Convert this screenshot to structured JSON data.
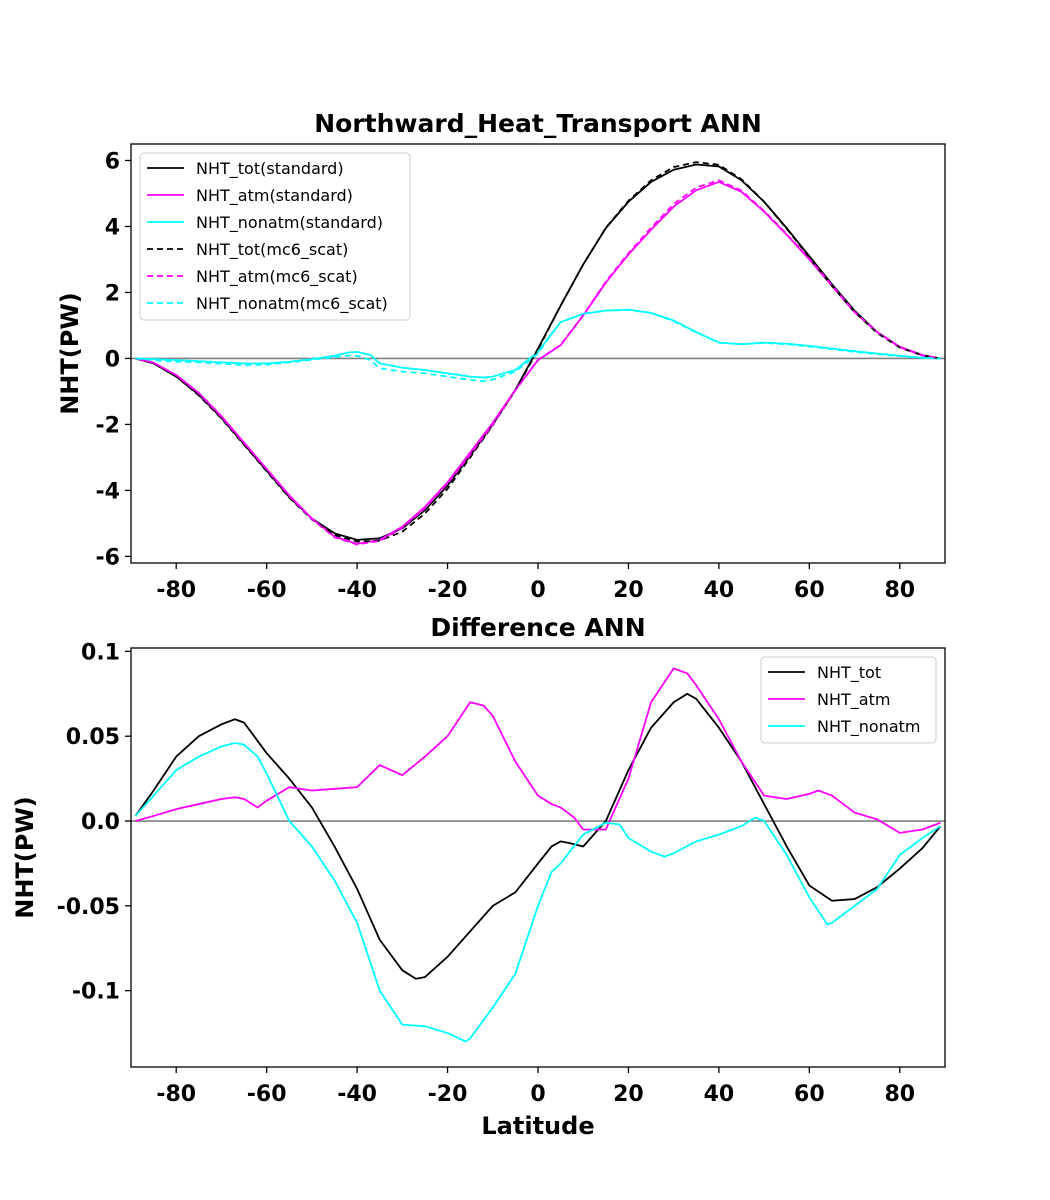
{
  "chart_data": [
    {
      "type": "line",
      "title": "Northward_Heat_Transport ANN",
      "xlabel": "",
      "ylabel": "NHT(PW)",
      "xlim": [
        -90,
        90
      ],
      "ylim": [
        -6.2,
        6.5
      ],
      "xticks": [
        -80,
        -60,
        -40,
        -20,
        0,
        20,
        40,
        60,
        80
      ],
      "xtick_labels": [
        "-80",
        "-60",
        "-40",
        "-20",
        "0",
        "20",
        "40",
        "60",
        "80"
      ],
      "yticks": [
        -6,
        -4,
        -2,
        0,
        2,
        4,
        6
      ],
      "ytick_labels": [
        "-6",
        "-4",
        "-2",
        "0",
        "2",
        "4",
        "6"
      ],
      "zero_line": true,
      "grid": false,
      "legend_position": "upper-left",
      "series": [
        {
          "name": "NHT_tot(standard)",
          "color": "#000000",
          "dash": "solid",
          "x": [
            -89,
            -85,
            -80,
            -75,
            -70,
            -65,
            -60,
            -55,
            -50,
            -45,
            -40,
            -35,
            -30,
            -25,
            -20,
            -15,
            -10,
            -5,
            0,
            5,
            10,
            15,
            20,
            25,
            30,
            35,
            40,
            45,
            50,
            55,
            60,
            65,
            70,
            75,
            80,
            85,
            89
          ],
          "y": [
            0,
            -0.15,
            -0.55,
            -1.1,
            -1.8,
            -2.6,
            -3.4,
            -4.2,
            -4.85,
            -5.3,
            -5.5,
            -5.45,
            -5.15,
            -4.6,
            -3.85,
            -2.95,
            -2.0,
            -0.95,
            0.3,
            1.6,
            2.85,
            3.95,
            4.75,
            5.35,
            5.72,
            5.88,
            5.82,
            5.4,
            4.75,
            3.95,
            3.1,
            2.25,
            1.45,
            0.8,
            0.35,
            0.1,
            0
          ]
        },
        {
          "name": "NHT_atm(standard)",
          "color": "#ff00ff",
          "dash": "solid",
          "x": [
            -89,
            -85,
            -80,
            -75,
            -70,
            -65,
            -60,
            -55,
            -50,
            -45,
            -40,
            -35,
            -30,
            -25,
            -20,
            -15,
            -10,
            -5,
            0,
            5,
            10,
            15,
            20,
            25,
            30,
            35,
            40,
            45,
            50,
            55,
            60,
            65,
            70,
            75,
            80,
            85,
            89
          ],
          "y": [
            0,
            -0.13,
            -0.5,
            -1.05,
            -1.75,
            -2.55,
            -3.35,
            -4.15,
            -4.85,
            -5.4,
            -5.62,
            -5.5,
            -5.1,
            -4.5,
            -3.75,
            -2.85,
            -1.95,
            -0.95,
            -0.05,
            0.4,
            1.3,
            2.3,
            3.15,
            3.9,
            4.6,
            5.1,
            5.35,
            5.05,
            4.45,
            3.75,
            3.0,
            2.2,
            1.4,
            0.8,
            0.35,
            0.1,
            0
          ]
        },
        {
          "name": "NHT_nonatm(standard)",
          "color": "#00ffff",
          "dash": "solid",
          "x": [
            -89,
            -85,
            -80,
            -75,
            -70,
            -65,
            -60,
            -55,
            -50,
            -45,
            -42,
            -40,
            -37,
            -35,
            -30,
            -25,
            -20,
            -15,
            -12,
            -10,
            -5,
            0,
            3,
            5,
            10,
            15,
            20,
            25,
            30,
            35,
            40,
            45,
            50,
            55,
            60,
            65,
            70,
            75,
            80,
            85,
            89
          ],
          "y": [
            0,
            -0.02,
            -0.05,
            -0.08,
            -0.12,
            -0.15,
            -0.15,
            -0.1,
            -0.02,
            0.08,
            0.18,
            0.2,
            0.1,
            -0.15,
            -0.28,
            -0.35,
            -0.45,
            -0.55,
            -0.58,
            -0.55,
            -0.35,
            0.2,
            0.75,
            1.1,
            1.35,
            1.45,
            1.48,
            1.38,
            1.15,
            0.8,
            0.48,
            0.43,
            0.48,
            0.45,
            0.38,
            0.3,
            0.22,
            0.15,
            0.08,
            0.02,
            0
          ]
        },
        {
          "name": "NHT_tot(mc6_scat)",
          "color": "#000000",
          "dash": "dashed",
          "x": [
            -89,
            -85,
            -80,
            -75,
            -70,
            -65,
            -60,
            -55,
            -50,
            -45,
            -40,
            -35,
            -30,
            -25,
            -20,
            -15,
            -10,
            -5,
            0,
            5,
            10,
            15,
            20,
            25,
            30,
            35,
            40,
            45,
            50,
            55,
            60,
            65,
            70,
            75,
            80,
            85,
            89
          ],
          "y": [
            0,
            -0.15,
            -0.55,
            -1.12,
            -1.82,
            -2.62,
            -3.42,
            -4.22,
            -4.88,
            -5.35,
            -5.55,
            -5.52,
            -5.25,
            -4.7,
            -3.95,
            -3.0,
            -2.02,
            -0.97,
            0.27,
            1.6,
            2.85,
            3.96,
            4.78,
            5.4,
            5.8,
            5.95,
            5.87,
            5.43,
            4.75,
            3.93,
            3.06,
            2.2,
            1.41,
            0.77,
            0.33,
            0.09,
            0
          ]
        },
        {
          "name": "NHT_atm(mc6_scat)",
          "color": "#ff00ff",
          "dash": "dashed",
          "x": [
            -89,
            -85,
            -80,
            -75,
            -70,
            -65,
            -60,
            -55,
            -50,
            -45,
            -40,
            -35,
            -30,
            -25,
            -20,
            -15,
            -10,
            -5,
            0,
            5,
            10,
            15,
            20,
            25,
            30,
            35,
            40,
            45,
            50,
            55,
            60,
            65,
            70,
            75,
            80,
            85,
            89
          ],
          "y": [
            0,
            -0.13,
            -0.51,
            -1.06,
            -1.77,
            -2.57,
            -3.36,
            -4.17,
            -4.87,
            -5.42,
            -5.64,
            -5.53,
            -5.13,
            -4.54,
            -3.79,
            -2.92,
            -2.0,
            -0.97,
            -0.04,
            0.41,
            1.31,
            2.33,
            3.19,
            3.96,
            4.68,
            5.18,
            5.4,
            5.09,
            4.47,
            3.77,
            3.02,
            2.22,
            1.41,
            0.8,
            0.34,
            0.09,
            0
          ]
        },
        {
          "name": "NHT_nonatm(mc6_scat)",
          "color": "#00ffff",
          "dash": "dashed",
          "x": [
            -89,
            -85,
            -80,
            -75,
            -70,
            -65,
            -60,
            -55,
            -50,
            -45,
            -42,
            -40,
            -37,
            -35,
            -30,
            -25,
            -20,
            -15,
            -12,
            -10,
            -5,
            0,
            3,
            5,
            10,
            15,
            20,
            25,
            30,
            35,
            40,
            45,
            50,
            55,
            60,
            65,
            70,
            75,
            80,
            85,
            89
          ],
          "y": [
            0,
            -0.05,
            -0.1,
            -0.12,
            -0.16,
            -0.2,
            -0.19,
            -0.12,
            -0.04,
            0.04,
            0.09,
            0.08,
            -0.05,
            -0.3,
            -0.4,
            -0.45,
            -0.55,
            -0.65,
            -0.69,
            -0.64,
            -0.4,
            0.15,
            0.74,
            1.1,
            1.36,
            1.45,
            1.47,
            1.38,
            1.13,
            0.79,
            0.48,
            0.43,
            0.47,
            0.43,
            0.36,
            0.28,
            0.2,
            0.13,
            0.07,
            0.02,
            0
          ]
        }
      ]
    },
    {
      "type": "line",
      "title": "Difference ANN",
      "xlabel": "Latitude",
      "ylabel": "NHT(PW)",
      "xlim": [
        -90,
        90
      ],
      "ylim": [
        -0.145,
        0.102
      ],
      "xticks": [
        -80,
        -60,
        -40,
        -20,
        0,
        20,
        40,
        60,
        80
      ],
      "xtick_labels": [
        "-80",
        "-60",
        "-40",
        "-20",
        "0",
        "20",
        "40",
        "60",
        "80"
      ],
      "yticks": [
        -0.1,
        -0.05,
        0.0,
        0.05,
        0.1
      ],
      "ytick_labels": [
        "-0.1",
        "-0.05",
        "0.0",
        "0.05",
        "0.1"
      ],
      "zero_line": true,
      "grid": false,
      "legend_position": "upper-right",
      "series": [
        {
          "name": "NHT_tot",
          "color": "#000000",
          "dash": "solid",
          "x": [
            -89,
            -85,
            -80,
            -75,
            -70,
            -67,
            -65,
            -60,
            -55,
            -50,
            -45,
            -40,
            -35,
            -30,
            -27,
            -25,
            -20,
            -15,
            -10,
            -5,
            0,
            3,
            5,
            7,
            10,
            15,
            20,
            25,
            30,
            33,
            35,
            40,
            45,
            50,
            55,
            60,
            65,
            70,
            75,
            80,
            85,
            89
          ],
          "y": [
            0.003,
            0.018,
            0.038,
            0.05,
            0.057,
            0.06,
            0.058,
            0.04,
            0.025,
            0.008,
            -0.015,
            -0.04,
            -0.07,
            -0.088,
            -0.093,
            -0.092,
            -0.08,
            -0.065,
            -0.05,
            -0.042,
            -0.025,
            -0.015,
            -0.012,
            -0.013,
            -0.015,
            0.0,
            0.03,
            0.055,
            0.07,
            0.075,
            0.072,
            0.055,
            0.035,
            0.01,
            -0.015,
            -0.038,
            -0.047,
            -0.046,
            -0.039,
            -0.028,
            -0.016,
            -0.003
          ]
        },
        {
          "name": "NHT_atm",
          "color": "#ff00ff",
          "dash": "solid",
          "x": [
            -89,
            -85,
            -80,
            -75,
            -70,
            -67,
            -65,
            -62,
            -60,
            -55,
            -50,
            -45,
            -40,
            -35,
            -30,
            -25,
            -20,
            -15,
            -12,
            -10,
            -5,
            0,
            3,
            5,
            8,
            10,
            15,
            20,
            25,
            30,
            33,
            35,
            40,
            45,
            50,
            55,
            60,
            62,
            65,
            70,
            75,
            80,
            85,
            89
          ],
          "y": [
            0.0,
            0.003,
            0.007,
            0.01,
            0.013,
            0.014,
            0.013,
            0.008,
            0.012,
            0.02,
            0.018,
            0.019,
            0.02,
            0.033,
            0.027,
            0.038,
            0.05,
            0.07,
            0.068,
            0.062,
            0.035,
            0.015,
            0.01,
            0.008,
            0.002,
            -0.005,
            -0.005,
            0.025,
            0.07,
            0.09,
            0.087,
            0.08,
            0.06,
            0.035,
            0.015,
            0.013,
            0.016,
            0.018,
            0.015,
            0.005,
            0.001,
            -0.007,
            -0.005,
            -0.001
          ]
        },
        {
          "name": "NHT_nonatm",
          "color": "#00ffff",
          "dash": "solid",
          "x": [
            -89,
            -85,
            -80,
            -75,
            -70,
            -67,
            -65,
            -62,
            -60,
            -55,
            -50,
            -45,
            -40,
            -35,
            -30,
            -25,
            -20,
            -16,
            -15,
            -10,
            -5,
            0,
            3,
            5,
            10,
            15,
            18,
            20,
            25,
            28,
            30,
            35,
            40,
            45,
            48,
            50,
            55,
            60,
            64,
            65,
            70,
            75,
            80,
            85,
            89
          ],
          "y": [
            0.003,
            0.015,
            0.03,
            0.038,
            0.044,
            0.046,
            0.045,
            0.038,
            0.028,
            0.0,
            -0.015,
            -0.035,
            -0.06,
            -0.1,
            -0.12,
            -0.121,
            -0.125,
            -0.13,
            -0.128,
            -0.11,
            -0.09,
            -0.05,
            -0.03,
            -0.025,
            -0.008,
            -0.001,
            -0.002,
            -0.01,
            -0.018,
            -0.021,
            -0.019,
            -0.012,
            -0.008,
            -0.003,
            0.002,
            0.0,
            -0.02,
            -0.045,
            -0.061,
            -0.06,
            -0.05,
            -0.04,
            -0.02,
            -0.01,
            -0.003
          ]
        }
      ]
    }
  ]
}
